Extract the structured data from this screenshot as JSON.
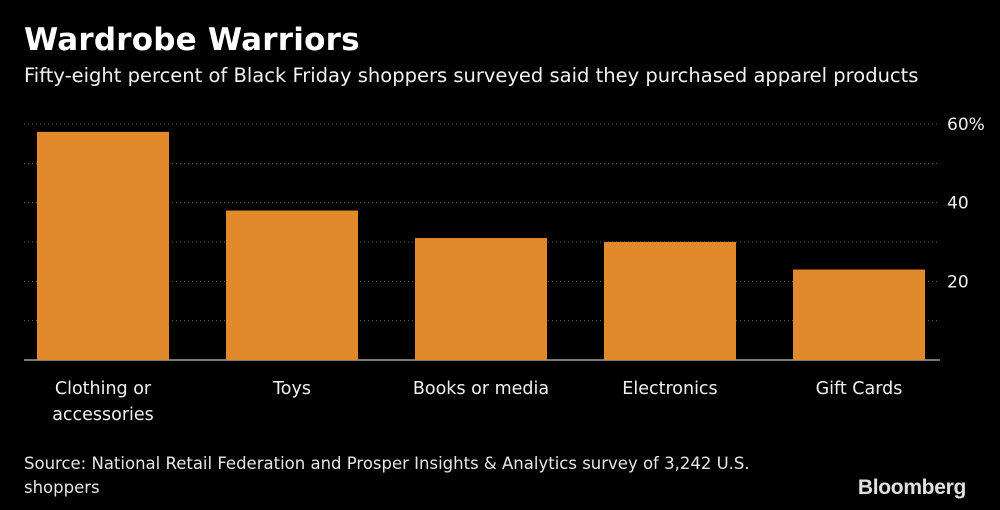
{
  "header": {
    "title": "Wardrobe Warriors",
    "subtitle": "Fifty-eight percent of Black Friday shoppers surveyed said they purchased apparel products"
  },
  "footer": {
    "source": "Source: National Retail Federation and Prosper Insights & Analytics survey of 3,242 U.S. shoppers",
    "brand": "Bloomberg"
  },
  "colors": {
    "background": "#000000",
    "bar": "#e08a2b",
    "grid": "#666666",
    "text": "#ffffff"
  },
  "chart_data": {
    "type": "bar",
    "categories": [
      [
        "Clothing or",
        "accessories"
      ],
      [
        "Toys"
      ],
      [
        "Books or media"
      ],
      [
        "Electronics"
      ],
      [
        "Gift Cards"
      ]
    ],
    "values": [
      58,
      38,
      31,
      30,
      23
    ],
    "ylim": [
      0,
      60
    ],
    "yticks": [
      {
        "value": 60,
        "label": "60%"
      },
      {
        "value": 40,
        "label": "40"
      },
      {
        "value": 20,
        "label": "20"
      }
    ],
    "gridlines": [
      10,
      20,
      30,
      40,
      50,
      60
    ],
    "grid": true,
    "xlabel": "",
    "ylabel": ""
  }
}
